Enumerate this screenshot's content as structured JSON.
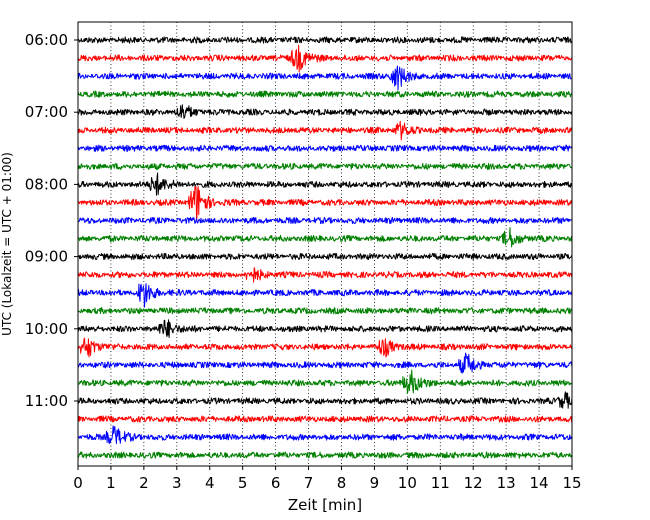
{
  "chart_data": {
    "type": "line",
    "title": "",
    "xlabel": "Zeit  [min]",
    "ylabel": "UTC (Lokalzeit = UTC + 01:00)",
    "xlim": [
      0,
      15
    ],
    "x_ticks": [
      0,
      1,
      2,
      3,
      4,
      5,
      6,
      7,
      8,
      9,
      10,
      11,
      12,
      13,
      14,
      15
    ],
    "y_tick_labels": [
      "06:00",
      "07:00",
      "08:00",
      "09:00",
      "10:00",
      "11:00"
    ],
    "grid": "vertical dotted",
    "legend": "none",
    "trace_colors": [
      "#000000",
      "#ff0000",
      "#0000ff",
      "#008000"
    ],
    "traces": [
      {
        "start": "06:00",
        "events": []
      },
      {
        "start": "06:15",
        "events": [
          {
            "t": 6.7,
            "amp": 1.6
          }
        ]
      },
      {
        "start": "06:30",
        "events": [
          {
            "t": 9.7,
            "amp": 1.5
          }
        ]
      },
      {
        "start": "06:45",
        "events": []
      },
      {
        "start": "07:00",
        "events": [
          {
            "t": 3.2,
            "amp": 0.9
          }
        ]
      },
      {
        "start": "07:15",
        "events": [
          {
            "t": 9.8,
            "amp": 0.9
          }
        ]
      },
      {
        "start": "07:30",
        "events": []
      },
      {
        "start": "07:45",
        "events": []
      },
      {
        "start": "08:00",
        "events": [
          {
            "t": 2.4,
            "amp": 1.3
          }
        ]
      },
      {
        "start": "08:15",
        "events": [
          {
            "t": 3.6,
            "amp": 2.3
          }
        ]
      },
      {
        "start": "08:30",
        "events": []
      },
      {
        "start": "08:45",
        "events": [
          {
            "t": 13.1,
            "amp": 1.1
          }
        ]
      },
      {
        "start": "09:00",
        "events": []
      },
      {
        "start": "09:15",
        "events": [
          {
            "t": 5.3,
            "amp": 0.8
          }
        ]
      },
      {
        "start": "09:30",
        "events": [
          {
            "t": 2.0,
            "amp": 1.6
          }
        ]
      },
      {
        "start": "09:45",
        "events": []
      },
      {
        "start": "10:00",
        "events": [
          {
            "t": 2.7,
            "amp": 1.1
          }
        ]
      },
      {
        "start": "10:15",
        "events": [
          {
            "t": 0.3,
            "amp": 1.2
          },
          {
            "t": 9.3,
            "amp": 1.1
          }
        ]
      },
      {
        "start": "10:30",
        "events": [
          {
            "t": 11.8,
            "amp": 1.3
          }
        ]
      },
      {
        "start": "10:45",
        "events": [
          {
            "t": 10.1,
            "amp": 1.6
          }
        ]
      },
      {
        "start": "11:00",
        "events": [
          {
            "t": 14.8,
            "amp": 1.0
          }
        ]
      },
      {
        "start": "11:15",
        "events": []
      },
      {
        "start": "11:30",
        "events": [
          {
            "t": 1.1,
            "amp": 1.3
          }
        ]
      },
      {
        "start": "11:45",
        "events": []
      }
    ]
  }
}
